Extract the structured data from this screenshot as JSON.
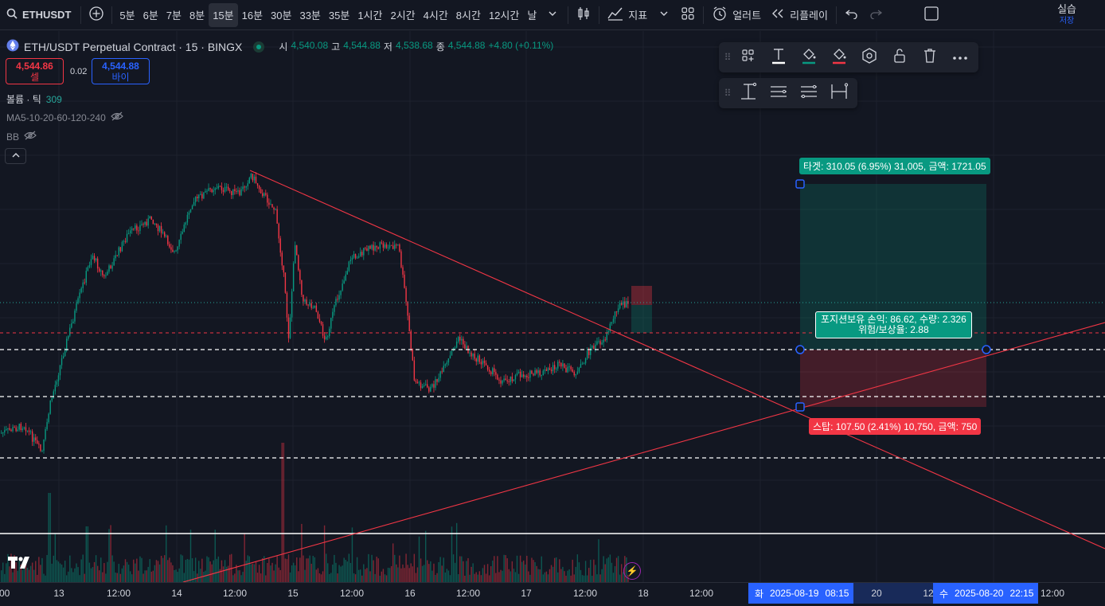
{
  "toolbar": {
    "symbol": "ETHUSDT",
    "intervals": [
      "5분",
      "6분",
      "7분",
      "8분",
      "15분",
      "16분",
      "30분",
      "33분",
      "35분",
      "1시간",
      "2시간",
      "4시간",
      "8시간",
      "12시간",
      "날"
    ],
    "active_interval": "15분",
    "indicators_label": "지표",
    "alert_label": "얼러트",
    "replay_label": "리플레이",
    "mode_label": "실습",
    "save_label": "저장"
  },
  "legend": {
    "title": "ETH/USDT Perpetual Contract · 15 · BINGX",
    "open_key": "시",
    "open": "4,540.08",
    "high_key": "고",
    "high": "4,544.88",
    "low_key": "저",
    "low": "4,538.68",
    "close_key": "종",
    "close": "4,544.88",
    "change": "+4.80 (+0.11%)"
  },
  "trade": {
    "sell_price": "4,544.86",
    "sell_label": "셀",
    "spread": "0.02",
    "buy_price": "4,544.88",
    "buy_label": "바이"
  },
  "indicators": {
    "volume_label": "볼륨 · 틱",
    "volume_value": "309",
    "ma_label": "MA5-10-20-60-120-240",
    "bb_label": "BB"
  },
  "position": {
    "target_label": "타겟: 310.05 (6.95%) 31,005, 금액: 1721.05",
    "status_line1": "포지션보유 손익: 86.62, 수량: 2.326",
    "status_line2": "위험/보상율: 2.88",
    "stop_label": "스탑: 107.50 (2.41%) 10,750, 금액: 750"
  },
  "time_axis": {
    "ticks": [
      ":00",
      "13",
      "12:00",
      "14",
      "12:00",
      "15",
      "12:00",
      "16",
      "12:00",
      "17",
      "12:00",
      "18",
      "12:00",
      "20",
      "12",
      "12:00"
    ],
    "start_tag_day": "화",
    "start_tag_date": "2025-08-19",
    "start_tag_time": "08:15",
    "end_tag_day": "수",
    "end_tag_date": "2025-08-20",
    "end_tag_time": "22:15"
  },
  "colors": {
    "up": "#089981",
    "down": "#f23645",
    "accent": "#2962ff",
    "bg": "#131722"
  }
}
